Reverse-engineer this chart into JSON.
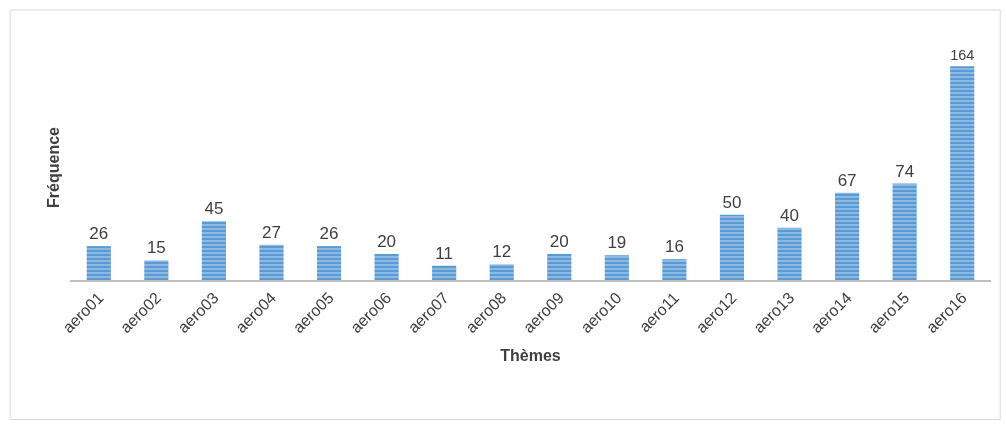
{
  "chart_data": {
    "type": "bar",
    "xlabel": "Thèmes",
    "ylabel": "Fréquence",
    "tick_labels": "x",
    "categories": [
      "aero01",
      "aero02",
      "aero03",
      "aero04",
      "aero05",
      "aero06",
      "aero07",
      "aero08",
      "aero09",
      "aero10",
      "aero11",
      "aero12",
      "aero13",
      "aero14",
      "aero15",
      "aero16"
    ],
    "values": [
      26,
      15,
      45,
      27,
      26,
      20,
      11,
      12,
      20,
      19,
      16,
      50,
      40,
      67,
      74,
      164
    ],
    "color": "#5b9bd5",
    "data_labels": true
  }
}
